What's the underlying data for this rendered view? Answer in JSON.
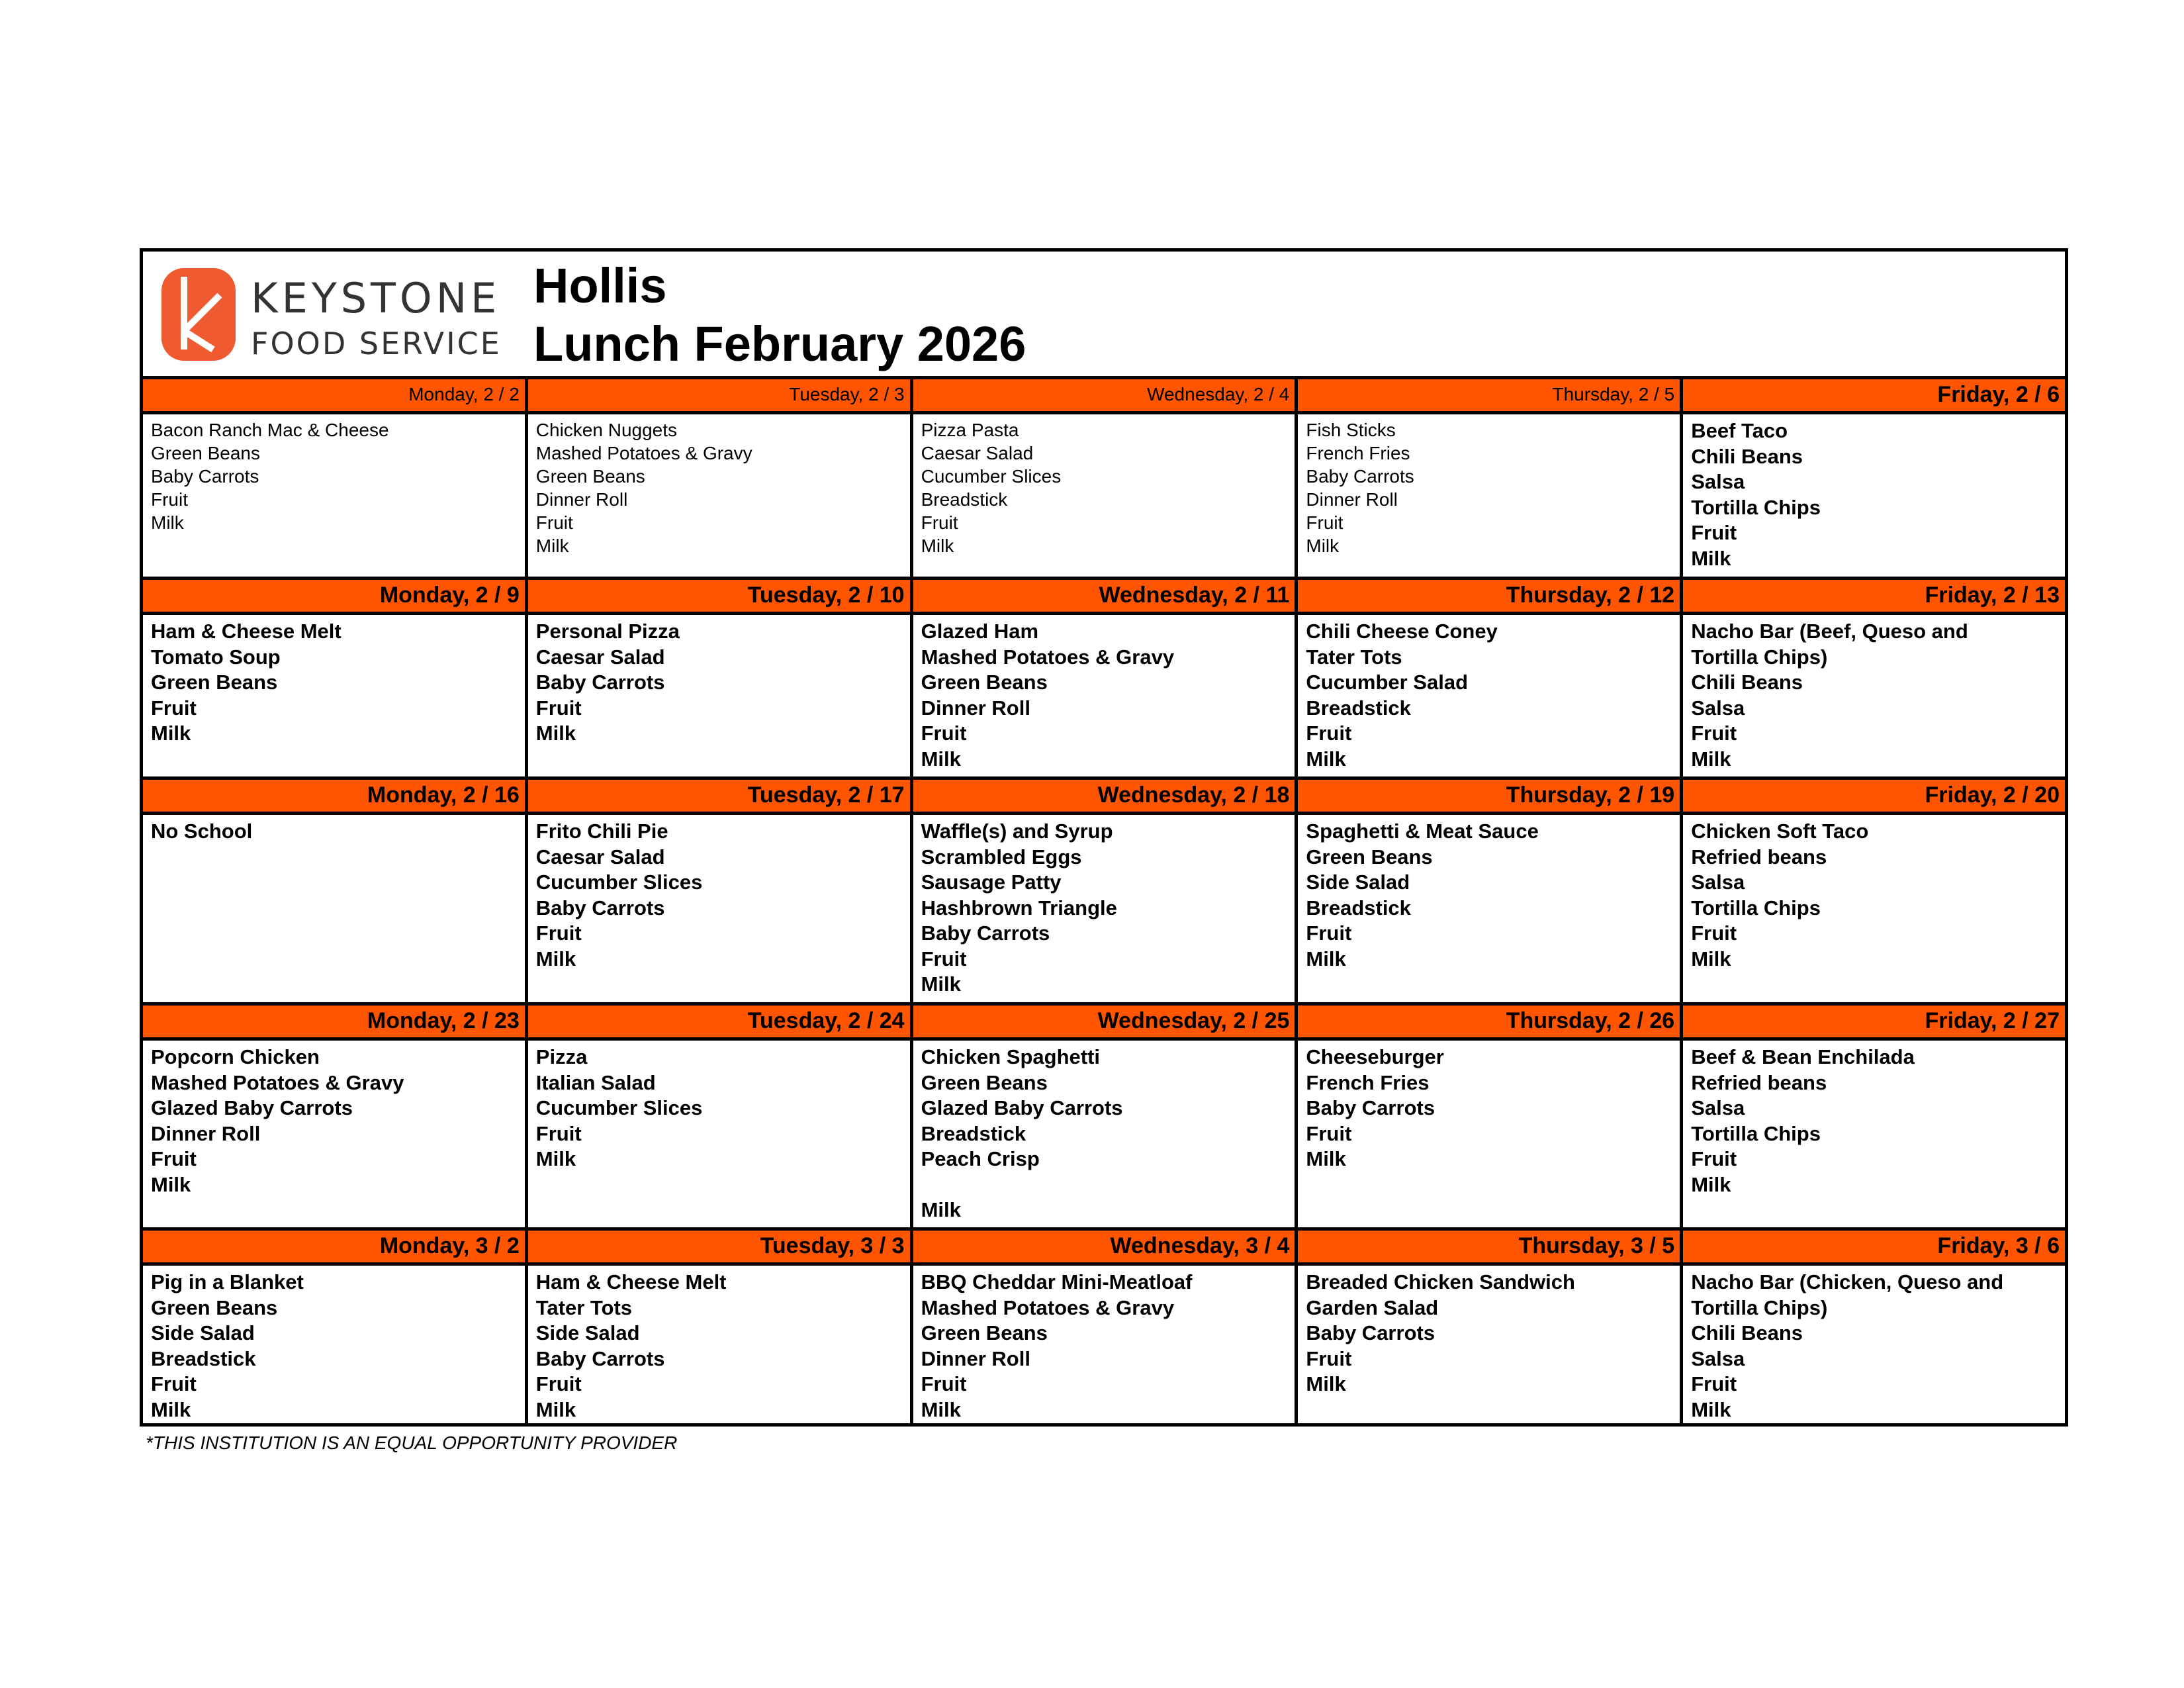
{
  "brand": {
    "line1": "KEYSTONE",
    "line2": "FOOD SERVICE",
    "logo_color": "#F05A30"
  },
  "header": {
    "school": "Hollis",
    "title": "Lunch February 2026"
  },
  "colors": {
    "day_header": "#FF5500",
    "border": "#000000"
  },
  "weeks": [
    {
      "days": [
        {
          "label": "Monday, 2 / 2",
          "bold": false,
          "items": [
            "Bacon Ranch Mac & Cheese",
            "Green Beans",
            "Baby Carrots",
            "Fruit",
            "Milk"
          ]
        },
        {
          "label": "Tuesday, 2 / 3",
          "bold": false,
          "items": [
            "Chicken Nuggets",
            "Mashed Potatoes & Gravy",
            "Green Beans",
            "Dinner Roll",
            "Fruit",
            "Milk"
          ]
        },
        {
          "label": "Wednesday, 2 / 4",
          "bold": false,
          "items": [
            "Pizza Pasta",
            "Caesar Salad",
            "Cucumber Slices",
            "Breadstick",
            "Fruit",
            "Milk"
          ]
        },
        {
          "label": "Thursday, 2 / 5",
          "bold": false,
          "items": [
            "Fish Sticks",
            "French Fries",
            "Baby Carrots",
            "Dinner Roll",
            "Fruit",
            "Milk"
          ]
        },
        {
          "label": "Friday, 2 / 6",
          "bold": true,
          "items": [
            "Beef Taco",
            "Chili Beans",
            "Salsa",
            "Tortilla Chips",
            "Fruit",
            "Milk"
          ]
        }
      ]
    },
    {
      "days": [
        {
          "label": "Monday, 2 / 9",
          "bold": true,
          "items": [
            "Ham & Cheese Melt",
            "Tomato Soup",
            "Green Beans",
            "Fruit",
            "Milk"
          ]
        },
        {
          "label": "Tuesday, 2 / 10",
          "bold": true,
          "items": [
            "Personal Pizza",
            "Caesar Salad",
            "Baby Carrots",
            "Fruit",
            "Milk"
          ]
        },
        {
          "label": "Wednesday, 2 / 11",
          "bold": true,
          "items": [
            "Glazed Ham",
            "Mashed Potatoes & Gravy",
            "Green Beans",
            "Dinner Roll",
            "Fruit",
            "Milk"
          ]
        },
        {
          "label": "Thursday, 2 / 12",
          "bold": true,
          "items": [
            "Chili Cheese Coney",
            "Tater Tots",
            "Cucumber Salad",
            "Breadstick",
            "Fruit",
            "Milk"
          ]
        },
        {
          "label": "Friday, 2 / 13",
          "bold": true,
          "items": [
            "Nacho Bar (Beef, Queso and",
            "Tortilla Chips)",
            "Chili Beans",
            "Salsa",
            "Fruit",
            "Milk"
          ]
        }
      ]
    },
    {
      "days": [
        {
          "label": "Monday, 2 / 16",
          "bold": true,
          "items": [
            "No School"
          ]
        },
        {
          "label": "Tuesday, 2 / 17",
          "bold": true,
          "items": [
            "Frito Chili Pie",
            "Caesar Salad",
            "Cucumber Slices",
            "Baby Carrots",
            "Fruit",
            "Milk"
          ]
        },
        {
          "label": "Wednesday, 2 / 18",
          "bold": true,
          "items": [
            "Waffle(s) and Syrup",
            "Scrambled Eggs",
            "Sausage Patty",
            "Hashbrown Triangle",
            "Baby Carrots",
            "Fruit",
            "Milk"
          ]
        },
        {
          "label": "Thursday, 2 / 19",
          "bold": true,
          "items": [
            "Spaghetti & Meat Sauce",
            "Green Beans",
            "Side Salad",
            "Breadstick",
            "Fruit",
            "Milk"
          ]
        },
        {
          "label": "Friday, 2 / 20",
          "bold": true,
          "items": [
            "Chicken Soft Taco",
            "Refried beans",
            "Salsa",
            "Tortilla Chips",
            "Fruit",
            "Milk"
          ]
        }
      ]
    },
    {
      "days": [
        {
          "label": "Monday, 2 / 23",
          "bold": true,
          "items": [
            "Popcorn Chicken",
            "Mashed Potatoes & Gravy",
            "Glazed Baby Carrots",
            "Dinner Roll",
            "Fruit",
            "Milk"
          ]
        },
        {
          "label": "Tuesday, 2 / 24",
          "bold": true,
          "items": [
            "Pizza",
            "Italian Salad",
            "Cucumber Slices",
            "Fruit",
            "Milk"
          ]
        },
        {
          "label": "Wednesday, 2 / 25",
          "bold": true,
          "items": [
            "Chicken Spaghetti",
            "Green Beans",
            "Glazed Baby Carrots",
            "Breadstick",
            "Peach Crisp",
            "",
            "Milk"
          ]
        },
        {
          "label": "Thursday, 2 / 26",
          "bold": true,
          "items": [
            "Cheeseburger",
            "French Fries",
            "Baby Carrots",
            "Fruit",
            "Milk"
          ]
        },
        {
          "label": "Friday, 2 / 27",
          "bold": true,
          "items": [
            "Beef & Bean Enchilada",
            "Refried beans",
            "Salsa",
            "Tortilla Chips",
            "Fruit",
            "Milk"
          ]
        }
      ]
    },
    {
      "days": [
        {
          "label": "Monday, 3 / 2",
          "bold": true,
          "items": [
            "Pig in a Blanket",
            "Green Beans",
            "Side Salad",
            "Breadstick",
            "Fruit",
            "Milk"
          ]
        },
        {
          "label": "Tuesday, 3 / 3",
          "bold": true,
          "items": [
            "Ham & Cheese Melt",
            "Tater Tots",
            "Side Salad",
            "Baby Carrots",
            "Fruit",
            "Milk"
          ]
        },
        {
          "label": "Wednesday, 3 / 4",
          "bold": true,
          "items": [
            "BBQ Cheddar Mini-Meatloaf",
            "Mashed Potatoes & Gravy",
            "Green Beans",
            "Dinner Roll",
            "Fruit",
            "Milk"
          ]
        },
        {
          "label": "Thursday, 3 / 5",
          "bold": true,
          "items": [
            "Breaded Chicken Sandwich",
            "Garden Salad",
            "Baby Carrots",
            "Fruit",
            "Milk"
          ]
        },
        {
          "label": "Friday, 3 / 6",
          "bold": true,
          "items": [
            "Nacho Bar (Chicken, Queso and",
            "Tortilla Chips)",
            "Chili Beans",
            "Salsa",
            "Fruit",
            "Milk"
          ]
        }
      ]
    }
  ],
  "footer": "*THIS INSTITUTION IS AN EQUAL OPPORTUNITY PROVIDER"
}
